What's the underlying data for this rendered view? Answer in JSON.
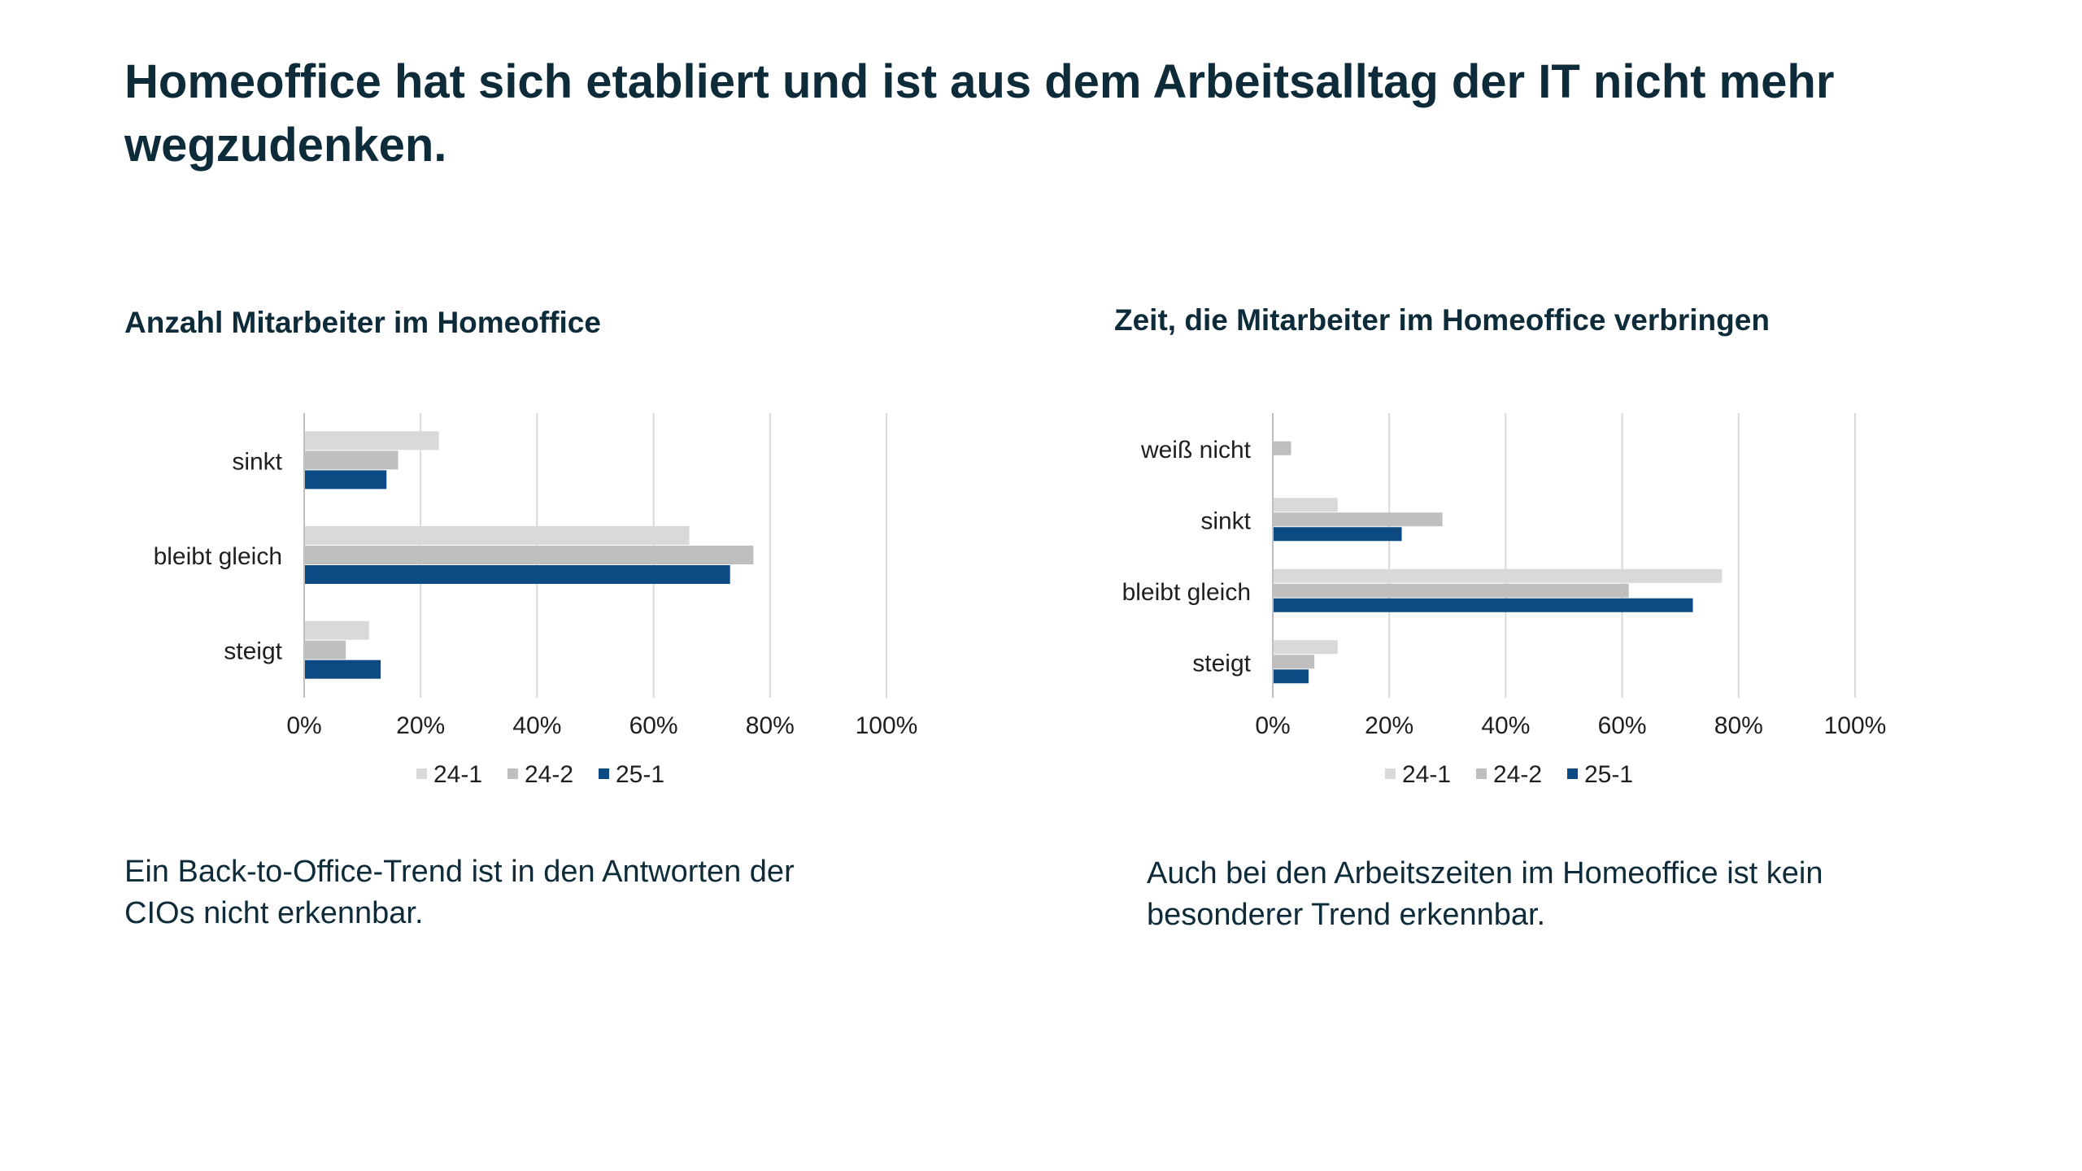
{
  "title": "Homeoffice hat sich etabliert und ist aus dem Arbeitsalltag der IT nicht mehr wegzudenken.",
  "captions": {
    "left": "Ein Back-to-Office-Trend ist in den Antworten der CIOs nicht erkennbar.",
    "right": "Auch bei den Arbeitszeiten im Homeoffice ist kein besonderer Trend erkennbar."
  },
  "colors": {
    "24-1": "#d9d9d9",
    "24-2": "#bfbfbf",
    "25-1": "#0b4a83",
    "grid": "#d9d9d9",
    "axis": "#bfbfbf"
  },
  "chart_data": [
    {
      "type": "bar",
      "orientation": "horizontal",
      "title": "Anzahl Mitarbeiter im Homeoffice",
      "categories": [
        "sinkt",
        "bleibt gleich",
        "steigt"
      ],
      "series": [
        {
          "name": "24-1",
          "values": [
            23,
            66,
            11
          ]
        },
        {
          "name": "24-2",
          "values": [
            16,
            77,
            7
          ]
        },
        {
          "name": "25-1",
          "values": [
            14,
            73,
            13
          ]
        }
      ],
      "xlim": [
        0,
        100
      ],
      "ticks": [
        "0%",
        "20%",
        "40%",
        "60%",
        "80%",
        "100%"
      ],
      "grid": true,
      "legend": "bottom"
    },
    {
      "type": "bar",
      "orientation": "horizontal",
      "title": "Zeit, die Mitarbeiter im Homeoffice verbringen",
      "categories": [
        "weiß nicht",
        "sinkt",
        "bleibt gleich",
        "steigt"
      ],
      "series": [
        {
          "name": "24-1",
          "values": [
            0,
            11,
            77,
            11
          ]
        },
        {
          "name": "24-2",
          "values": [
            3,
            29,
            61,
            7
          ]
        },
        {
          "name": "25-1",
          "values": [
            0,
            22,
            72,
            6
          ]
        }
      ],
      "xlim": [
        0,
        100
      ],
      "ticks": [
        "0%",
        "20%",
        "40%",
        "60%",
        "80%",
        "100%"
      ],
      "grid": true,
      "legend": "bottom"
    }
  ]
}
